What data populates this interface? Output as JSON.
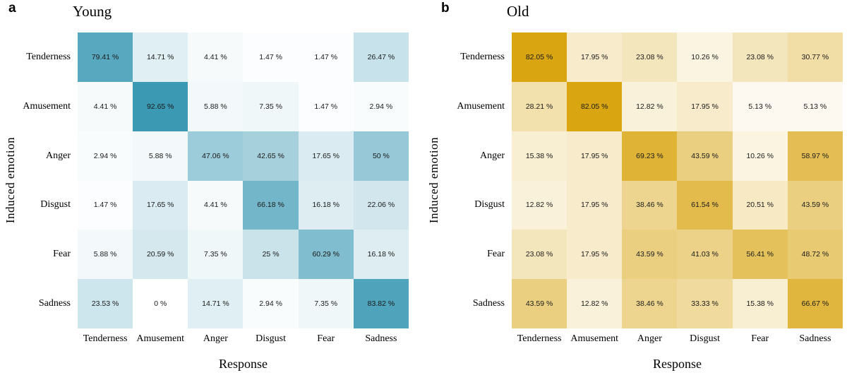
{
  "chart_data": [
    {
      "type": "heatmap",
      "panel_letter": "a",
      "title": "Young",
      "xlabel": "Response",
      "ylabel": "Induced emotion",
      "rows": [
        "Tenderness",
        "Amusement",
        "Anger",
        "Disgust",
        "Fear",
        "Sadness"
      ],
      "cols": [
        "Tenderness",
        "Amusement",
        "Anger",
        "Disgust",
        "Fear",
        "Sadness"
      ],
      "values_percent": [
        [
          79.41,
          14.71,
          4.41,
          1.47,
          1.47,
          26.47
        ],
        [
          4.41,
          92.65,
          5.88,
          7.35,
          1.47,
          2.94
        ],
        [
          2.94,
          5.88,
          47.06,
          42.65,
          17.65,
          50
        ],
        [
          1.47,
          17.65,
          4.41,
          66.18,
          16.18,
          22.06
        ],
        [
          5.88,
          20.59,
          7.35,
          25,
          60.29,
          16.18
        ],
        [
          23.53,
          0,
          14.71,
          2.94,
          7.35,
          83.82
        ]
      ],
      "cell_labels": [
        [
          "79.41 %",
          "14.71 %",
          "4.41 %",
          "1.47 %",
          "1.47 %",
          "26.47 %"
        ],
        [
          "4.41 %",
          "92.65 %",
          "5.88 %",
          "7.35 %",
          "1.47 %",
          "2.94 %"
        ],
        [
          "2.94 %",
          "5.88 %",
          "47.06 %",
          "42.65 %",
          "17.65 %",
          "50 %"
        ],
        [
          "1.47 %",
          "17.65 %",
          "4.41 %",
          "66.18 %",
          "16.18 %",
          "22.06 %"
        ],
        [
          "5.88 %",
          "20.59 %",
          "7.35 %",
          "25 %",
          "60.29 %",
          "16.18 %"
        ],
        [
          "23.53 %",
          "0 %",
          "14.71 %",
          "2.94 %",
          "7.35 %",
          "83.82 %"
        ]
      ],
      "colormap": {
        "low": "#FFFFFF",
        "high": "#3C99B4",
        "scaling": "white at 0 % to high color at panel max"
      },
      "grid": "off",
      "legend": "none"
    },
    {
      "type": "heatmap",
      "panel_letter": "b",
      "title": "Old",
      "xlabel": "Response",
      "ylabel": "Induced emotion",
      "rows": [
        "Tenderness",
        "Amusement",
        "Anger",
        "Disgust",
        "Fear",
        "Sadness"
      ],
      "cols": [
        "Tenderness",
        "Amusement",
        "Anger",
        "Disgust",
        "Fear",
        "Sadness"
      ],
      "values_percent": [
        [
          82.05,
          17.95,
          23.08,
          10.26,
          23.08,
          30.77
        ],
        [
          28.21,
          82.05,
          12.82,
          17.95,
          5.13,
          5.13
        ],
        [
          15.38,
          17.95,
          69.23,
          43.59,
          10.26,
          58.97
        ],
        [
          12.82,
          17.95,
          38.46,
          61.54,
          20.51,
          43.59
        ],
        [
          23.08,
          17.95,
          43.59,
          41.03,
          56.41,
          48.72
        ],
        [
          43.59,
          12.82,
          38.46,
          33.33,
          15.38,
          66.67
        ]
      ],
      "cell_labels": [
        [
          "82.05 %",
          "17.95 %",
          "23.08 %",
          "10.26 %",
          "23.08 %",
          "30.77 %"
        ],
        [
          "28.21 %",
          "82.05 %",
          "12.82 %",
          "17.95 %",
          "5.13 %",
          "5.13 %"
        ],
        [
          "15.38 %",
          "17.95 %",
          "69.23 %",
          "43.59 %",
          "10.26 %",
          "58.97 %"
        ],
        [
          "12.82 %",
          "17.95 %",
          "38.46 %",
          "61.54 %",
          "20.51 %",
          "43.59 %"
        ],
        [
          "23.08 %",
          "17.95 %",
          "43.59 %",
          "41.03 %",
          "56.41 %",
          "48.72 %"
        ],
        [
          "43.59 %",
          "12.82 %",
          "38.46 %",
          "33.33 %",
          "15.38 %",
          "66.67 %"
        ]
      ],
      "colormap": {
        "low": "#FFFFFF",
        "high": "#D9A511",
        "scaling": "white at 0 % to high color at panel max"
      },
      "grid": "off",
      "legend": "none"
    }
  ]
}
